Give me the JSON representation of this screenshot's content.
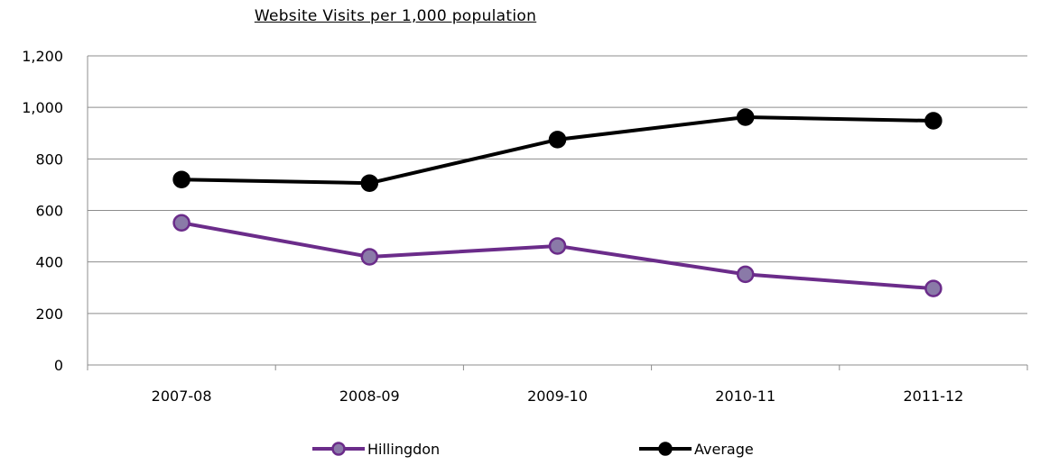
{
  "chart_data": {
    "type": "line",
    "title": "Website Visits per 1,000 population",
    "xlabel": "",
    "ylabel": "",
    "categories": [
      "2007-08",
      "2008-09",
      "2009-10",
      "2010-11",
      "2011-12"
    ],
    "ylim": [
      0,
      1200
    ],
    "yticks": [
      0,
      200,
      400,
      600,
      800,
      1000,
      1200
    ],
    "ytick_labels": [
      "0",
      "200",
      "400",
      "600",
      "800",
      "1,000",
      "1,200"
    ],
    "grid": true,
    "legend_position": "bottom",
    "series": [
      {
        "name": "Hillingdon",
        "values": [
          552,
          420,
          462,
          352,
          297
        ],
        "color": "#6b2c8a",
        "marker_fill": "#8a7aa8"
      },
      {
        "name": "Average",
        "values": [
          720,
          706,
          875,
          962,
          948
        ],
        "color": "#000000",
        "marker_fill": "#000000"
      }
    ]
  }
}
